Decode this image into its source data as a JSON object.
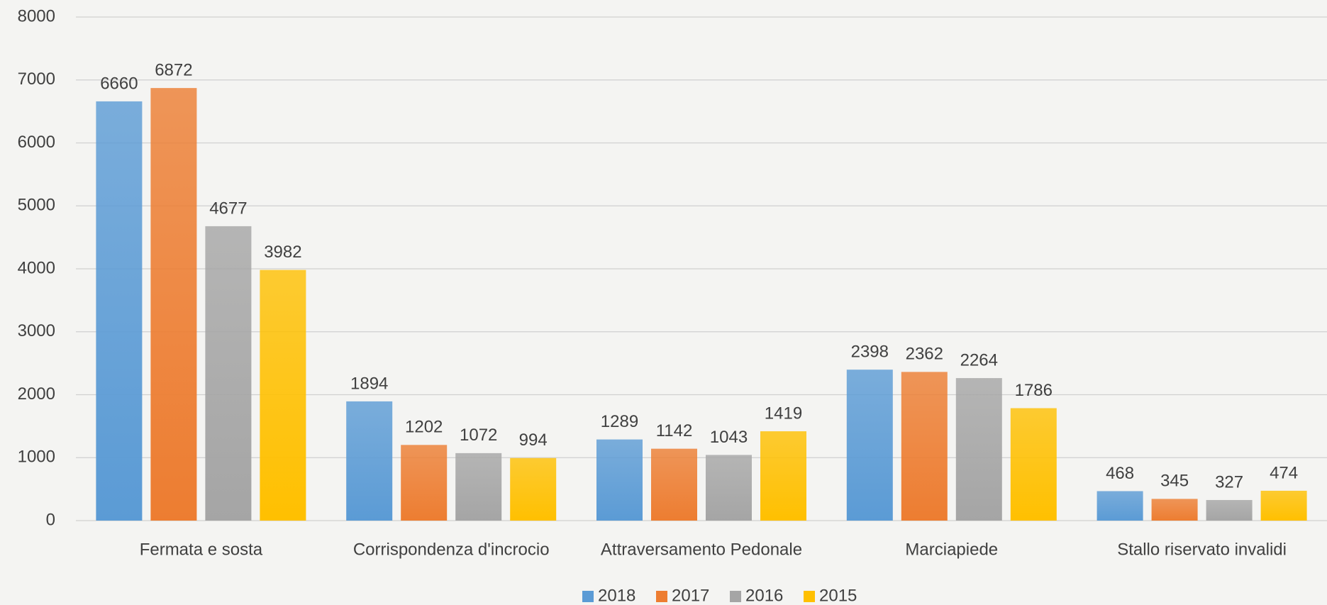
{
  "chart_data": {
    "type": "bar",
    "categories": [
      "Fermata e sosta",
      "Corrispondenza d'incrocio",
      "Attraversamento Pedonale",
      "Marciapiede",
      "Stallo riservato invalidi"
    ],
    "series": [
      {
        "name": "2018",
        "color": "#5b9bd5",
        "values": [
          6660,
          1894,
          1289,
          2398,
          468
        ]
      },
      {
        "name": "2017",
        "color": "#ed7d31",
        "values": [
          6872,
          1202,
          1142,
          2362,
          345
        ]
      },
      {
        "name": "2016",
        "color": "#a5a5a5",
        "values": [
          4677,
          1072,
          1043,
          2264,
          327
        ]
      },
      {
        "name": "2015",
        "color": "#ffc000",
        "values": [
          3982,
          994,
          1419,
          1786,
          474
        ]
      }
    ],
    "ylim": [
      0,
      8000
    ],
    "yticks": [
      0,
      1000,
      2000,
      3000,
      4000,
      5000,
      6000,
      7000,
      8000
    ],
    "grid": true,
    "legend": "bottom"
  }
}
